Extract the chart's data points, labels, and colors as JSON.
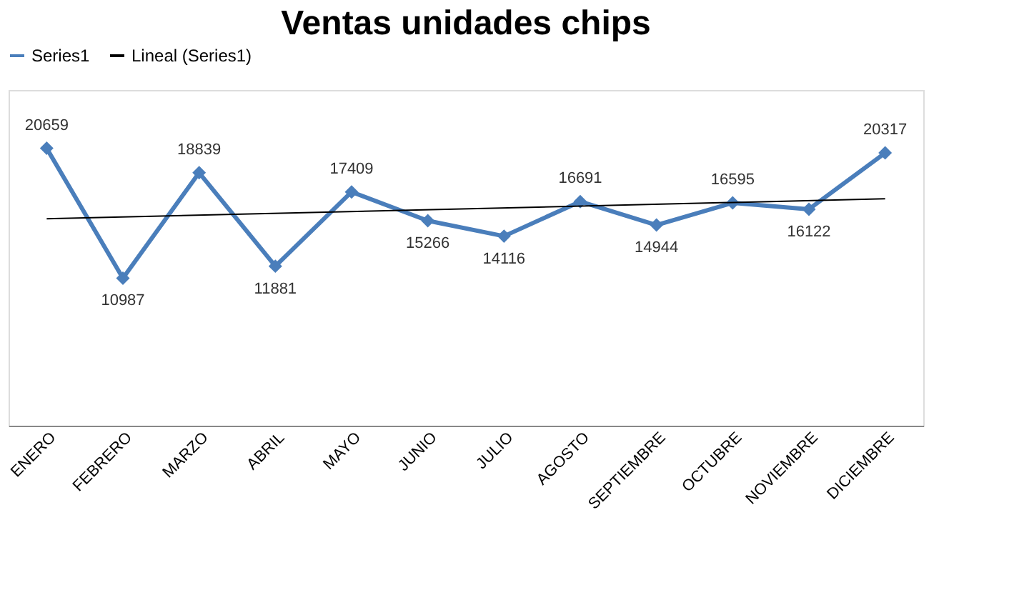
{
  "chart_data": {
    "type": "line",
    "title": "Ventas unidades chips",
    "categories": [
      "ENERO",
      "FEBRERO",
      "MARZO",
      "ABRIL",
      "MAYO",
      "JUNIO",
      "JULIO",
      "AGOSTO",
      "SEPTIEMBRE",
      "OCTUBRE",
      "NOVIEMBRE",
      "DICIEMBRE"
    ],
    "series": [
      {
        "name": "Series1",
        "color": "#4a7ebb",
        "marker": "diamond",
        "values": [
          20659,
          10987,
          18839,
          11881,
          17409,
          15266,
          14116,
          16691,
          14944,
          16595,
          16122,
          20317
        ],
        "data_labels": true
      },
      {
        "name": "Lineal (Series1)",
        "color": "#000000",
        "type": "line",
        "marker": "none",
        "x": [
          "ENERO",
          "DICIEMBRE"
        ],
        "values": [
          15407,
          16897
        ]
      }
    ],
    "ylim": [
      0,
      25000
    ],
    "tick_labels": "x",
    "legend": "top",
    "grid": false
  }
}
